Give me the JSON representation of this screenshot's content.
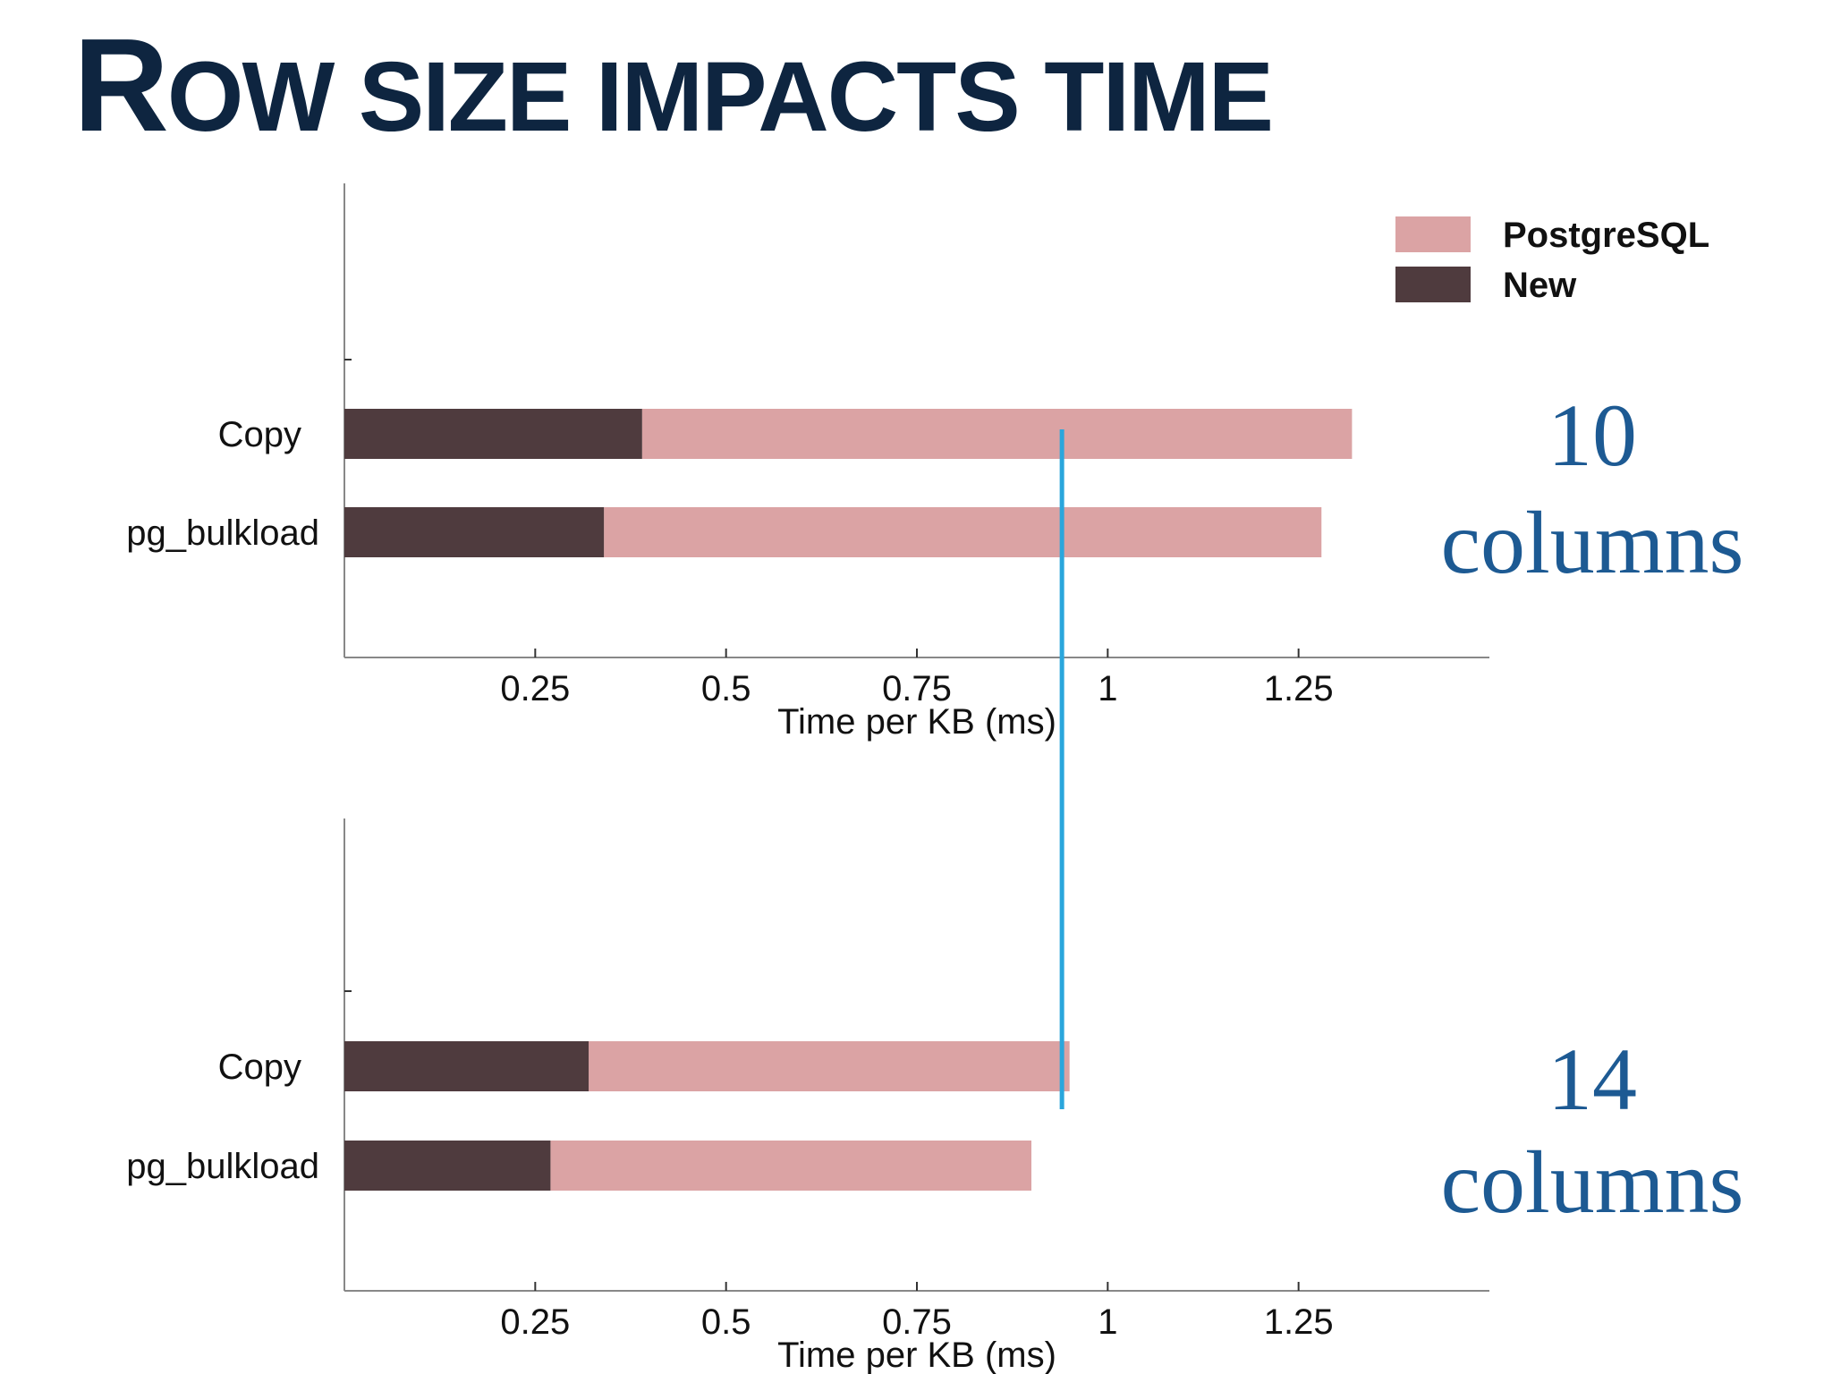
{
  "slide": {
    "title_initial": "R",
    "title_rest": "OW SIZE IMPACTS TIME"
  },
  "colors": {
    "postgresql": "#dba3a4",
    "new": "#4f3b3e",
    "reference_line": "#2aa6dc",
    "side_label": "#1d5a93",
    "title": "#0e2540"
  },
  "legend": {
    "placement": "top-right",
    "items": [
      {
        "name": "PostgreSQL",
        "color": "#dba3a4"
      },
      {
        "name": "New",
        "color": "#4f3b3e"
      }
    ]
  },
  "reference_line": {
    "x": 0.94
  },
  "chart_data": [
    {
      "type": "bar",
      "orientation": "horizontal",
      "stacked": true,
      "side_label": [
        "10",
        "columns"
      ],
      "categories": [
        "Copy",
        "pg_bulkload"
      ],
      "series": [
        {
          "name": "New",
          "values": [
            0.39,
            0.34
          ]
        },
        {
          "name": "PostgreSQL",
          "values": [
            0.93,
            0.94
          ]
        }
      ],
      "xlabel": "Time per KB (ms)",
      "xticks": [
        "0.25",
        "0.5",
        "0.75",
        "1",
        "1.25"
      ],
      "xlim": [
        0,
        1.5
      ],
      "grid": false
    },
    {
      "type": "bar",
      "orientation": "horizontal",
      "stacked": true,
      "side_label": [
        "14",
        "columns"
      ],
      "categories": [
        "Copy",
        "pg_bulkload"
      ],
      "series": [
        {
          "name": "New",
          "values": [
            0.32,
            0.27
          ]
        },
        {
          "name": "PostgreSQL",
          "values": [
            0.63,
            0.63
          ]
        }
      ],
      "xlabel": "Time per KB (ms)",
      "xticks": [
        "0.25",
        "0.5",
        "0.75",
        "1",
        "1.25"
      ],
      "xlim": [
        0,
        1.5
      ],
      "grid": false
    }
  ]
}
